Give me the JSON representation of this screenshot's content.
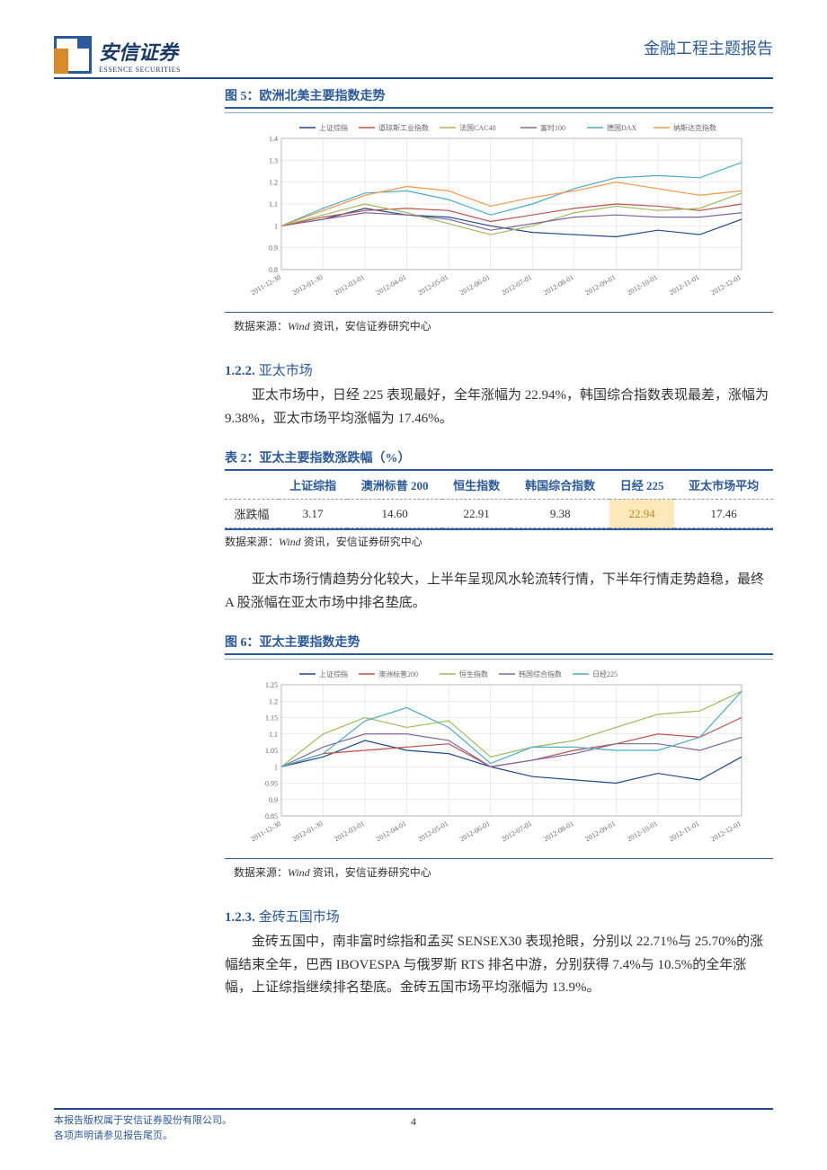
{
  "header": {
    "logo_cn": "安信证券",
    "logo_en": "ESSENCE SECURITIES",
    "title": "金融工程主题报告"
  },
  "fig5": {
    "title": "图 5：欧洲北美主要指数走势",
    "type": "line",
    "legend": [
      "上证综指",
      "道琼斯工业指数",
      "法国CAC40",
      "富时100",
      "德国DAX",
      "纳斯达克指数"
    ],
    "xlabels": [
      "2011-12-30",
      "2012-01-30",
      "2012-03-01",
      "2012-04-01",
      "2012-05-01",
      "2012-06-01",
      "2012-07-01",
      "2012-08-01",
      "2012-09-01",
      "2012-10-01",
      "2012-11-01",
      "2012-12-01"
    ],
    "ylim": [
      0.8,
      1.4
    ],
    "yticks": [
      0.8,
      0.9,
      1.0,
      1.1,
      1.2,
      1.3,
      1.4
    ],
    "ytick_labels": [
      "0.8",
      "0.9",
      "1",
      "1.1",
      "1.2",
      "1.3",
      "1.4"
    ],
    "background_color": "#ffffff",
    "grid_color": "#d8d8d8",
    "line_width": 1.2,
    "legend_fontsize": 8,
    "axis_fontsize": 8,
    "series": [
      {
        "name": "上证综指",
        "color": "#1e4a8a",
        "x": [
          0,
          1,
          2,
          3,
          4,
          5,
          6,
          7,
          8,
          9,
          10,
          11
        ],
        "y": [
          1.0,
          1.03,
          1.08,
          1.05,
          1.04,
          1.0,
          0.97,
          0.96,
          0.95,
          0.98,
          0.96,
          1.03
        ]
      },
      {
        "name": "道琼斯工业指数",
        "color": "#c0504d",
        "x": [
          0,
          1,
          2,
          3,
          4,
          5,
          6,
          7,
          8,
          9,
          10,
          11
        ],
        "y": [
          1.0,
          1.04,
          1.07,
          1.08,
          1.07,
          1.02,
          1.05,
          1.08,
          1.1,
          1.09,
          1.07,
          1.1
        ]
      },
      {
        "name": "法国CAC40",
        "color": "#9bbb59",
        "x": [
          0,
          1,
          2,
          3,
          4,
          5,
          6,
          7,
          8,
          9,
          10,
          11
        ],
        "y": [
          1.0,
          1.05,
          1.1,
          1.06,
          1.01,
          0.96,
          1.0,
          1.06,
          1.09,
          1.07,
          1.08,
          1.15
        ]
      },
      {
        "name": "富时100",
        "color": "#8064a2",
        "x": [
          0,
          1,
          2,
          3,
          4,
          5,
          6,
          7,
          8,
          9,
          10,
          11
        ],
        "y": [
          1.0,
          1.03,
          1.06,
          1.05,
          1.03,
          0.98,
          1.01,
          1.04,
          1.05,
          1.04,
          1.04,
          1.06
        ]
      },
      {
        "name": "德国DAX",
        "color": "#4bacc6",
        "x": [
          0,
          1,
          2,
          3,
          4,
          5,
          6,
          7,
          8,
          9,
          10,
          11
        ],
        "y": [
          1.0,
          1.08,
          1.15,
          1.16,
          1.12,
          1.05,
          1.1,
          1.17,
          1.22,
          1.23,
          1.22,
          1.29
        ]
      },
      {
        "name": "纳斯达克指数",
        "color": "#f79646",
        "x": [
          0,
          1,
          2,
          3,
          4,
          5,
          6,
          7,
          8,
          9,
          10,
          11
        ],
        "y": [
          1.0,
          1.07,
          1.14,
          1.18,
          1.16,
          1.09,
          1.13,
          1.16,
          1.2,
          1.17,
          1.14,
          1.16
        ]
      }
    ]
  },
  "source": {
    "label": "数据来源：",
    "wind": "Wind",
    "rest": " 资讯，安信证券研究中心"
  },
  "sect122": {
    "num": "1.2.2.",
    "title": "亚太市场",
    "para": "亚太市场中，日经 225 表现最好，全年涨幅为 22.94%，韩国综合指数表现最差，涨幅为 9.38%，亚太市场平均涨幅为 17.46%。"
  },
  "table2": {
    "title": "表 2：亚太主要指数涨跌幅（%）",
    "columns": [
      "",
      "上证综指",
      "澳洲标普 200",
      "恒生指数",
      "韩国综合指数",
      "日经 225",
      "亚太市场平均"
    ],
    "row_label": "涨跌幅",
    "values": [
      "3.17",
      "14.60",
      "22.91",
      "9.38",
      "22.94",
      "17.46"
    ],
    "highlight_idx": 4,
    "header_color": "#2a5a9a",
    "highlight_bg": "#fce8b8",
    "highlight_fg": "#c08a2a"
  },
  "para_after_table": "亚太市场行情趋势分化较大，上半年呈现风水轮流转行情，下半年行情走势趋稳，最终 A 股涨幅在亚太市场中排名垫底。",
  "fig6": {
    "title": "图 6：亚太主要指数走势",
    "type": "line",
    "legend": [
      "上证综指",
      "澳洲标普200",
      "恒生指数",
      "韩国综合指数",
      "日经225"
    ],
    "xlabels": [
      "2011-12-30",
      "2012-01-30",
      "2012-03-01",
      "2012-04-01",
      "2012-05-01",
      "2012-06-01",
      "2012-07-01",
      "2012-08-01",
      "2012-09-01",
      "2012-10-01",
      "2012-11-01",
      "2012-12-01"
    ],
    "ylim": [
      0.85,
      1.25
    ],
    "yticks": [
      0.85,
      0.9,
      0.95,
      1.0,
      1.05,
      1.1,
      1.15,
      1.2,
      1.25
    ],
    "ytick_labels": [
      "0.85",
      "0.9",
      "0.95",
      "1",
      "1.05",
      "1.1",
      "1.15",
      "1.2",
      "1.25"
    ],
    "background_color": "#ffffff",
    "grid_color": "#d8d8d8",
    "line_width": 1.2,
    "legend_fontsize": 8,
    "axis_fontsize": 8,
    "series": [
      {
        "name": "上证综指",
        "color": "#1e4a8a",
        "x": [
          0,
          1,
          2,
          3,
          4,
          5,
          6,
          7,
          8,
          9,
          10,
          11
        ],
        "y": [
          1.0,
          1.03,
          1.08,
          1.05,
          1.04,
          1.0,
          0.97,
          0.96,
          0.95,
          0.98,
          0.96,
          1.03
        ]
      },
      {
        "name": "澳洲标普200",
        "color": "#c0504d",
        "x": [
          0,
          1,
          2,
          3,
          4,
          5,
          6,
          7,
          8,
          9,
          10,
          11
        ],
        "y": [
          1.0,
          1.04,
          1.05,
          1.06,
          1.07,
          1.0,
          1.02,
          1.05,
          1.07,
          1.1,
          1.09,
          1.15
        ]
      },
      {
        "name": "恒生指数",
        "color": "#9bbb59",
        "x": [
          0,
          1,
          2,
          3,
          4,
          5,
          6,
          7,
          8,
          9,
          10,
          11
        ],
        "y": [
          1.0,
          1.1,
          1.15,
          1.12,
          1.14,
          1.03,
          1.06,
          1.08,
          1.12,
          1.16,
          1.17,
          1.23
        ]
      },
      {
        "name": "韩国综合指数",
        "color": "#8064a2",
        "x": [
          0,
          1,
          2,
          3,
          4,
          5,
          6,
          7,
          8,
          9,
          10,
          11
        ],
        "y": [
          1.0,
          1.06,
          1.1,
          1.1,
          1.08,
          1.0,
          1.02,
          1.04,
          1.07,
          1.07,
          1.05,
          1.09
        ]
      },
      {
        "name": "日经225",
        "color": "#4bacc6",
        "x": [
          0,
          1,
          2,
          3,
          4,
          5,
          6,
          7,
          8,
          9,
          10,
          11
        ],
        "y": [
          1.0,
          1.04,
          1.14,
          1.18,
          1.12,
          1.01,
          1.06,
          1.06,
          1.05,
          1.05,
          1.09,
          1.23
        ]
      }
    ]
  },
  "sect123": {
    "num": "1.2.3.",
    "title": "金砖五国市场",
    "para": "金砖五国中，南非富时综指和孟买 SENSEX30 表现抢眼，分别以 22.71%与 25.70%的涨幅结束全年，巴西 IBOVESPA 与俄罗斯 RTS 排名中游，分别获得 7.4%与 10.5%的全年涨幅，上证综指继续排名垫底。金砖五国市场平均涨幅为 13.9%。"
  },
  "footer": {
    "line1": "本报告版权属于安信证券股份有限公司。",
    "line2": "各项声明请参见报告尾页。",
    "page": "4"
  }
}
